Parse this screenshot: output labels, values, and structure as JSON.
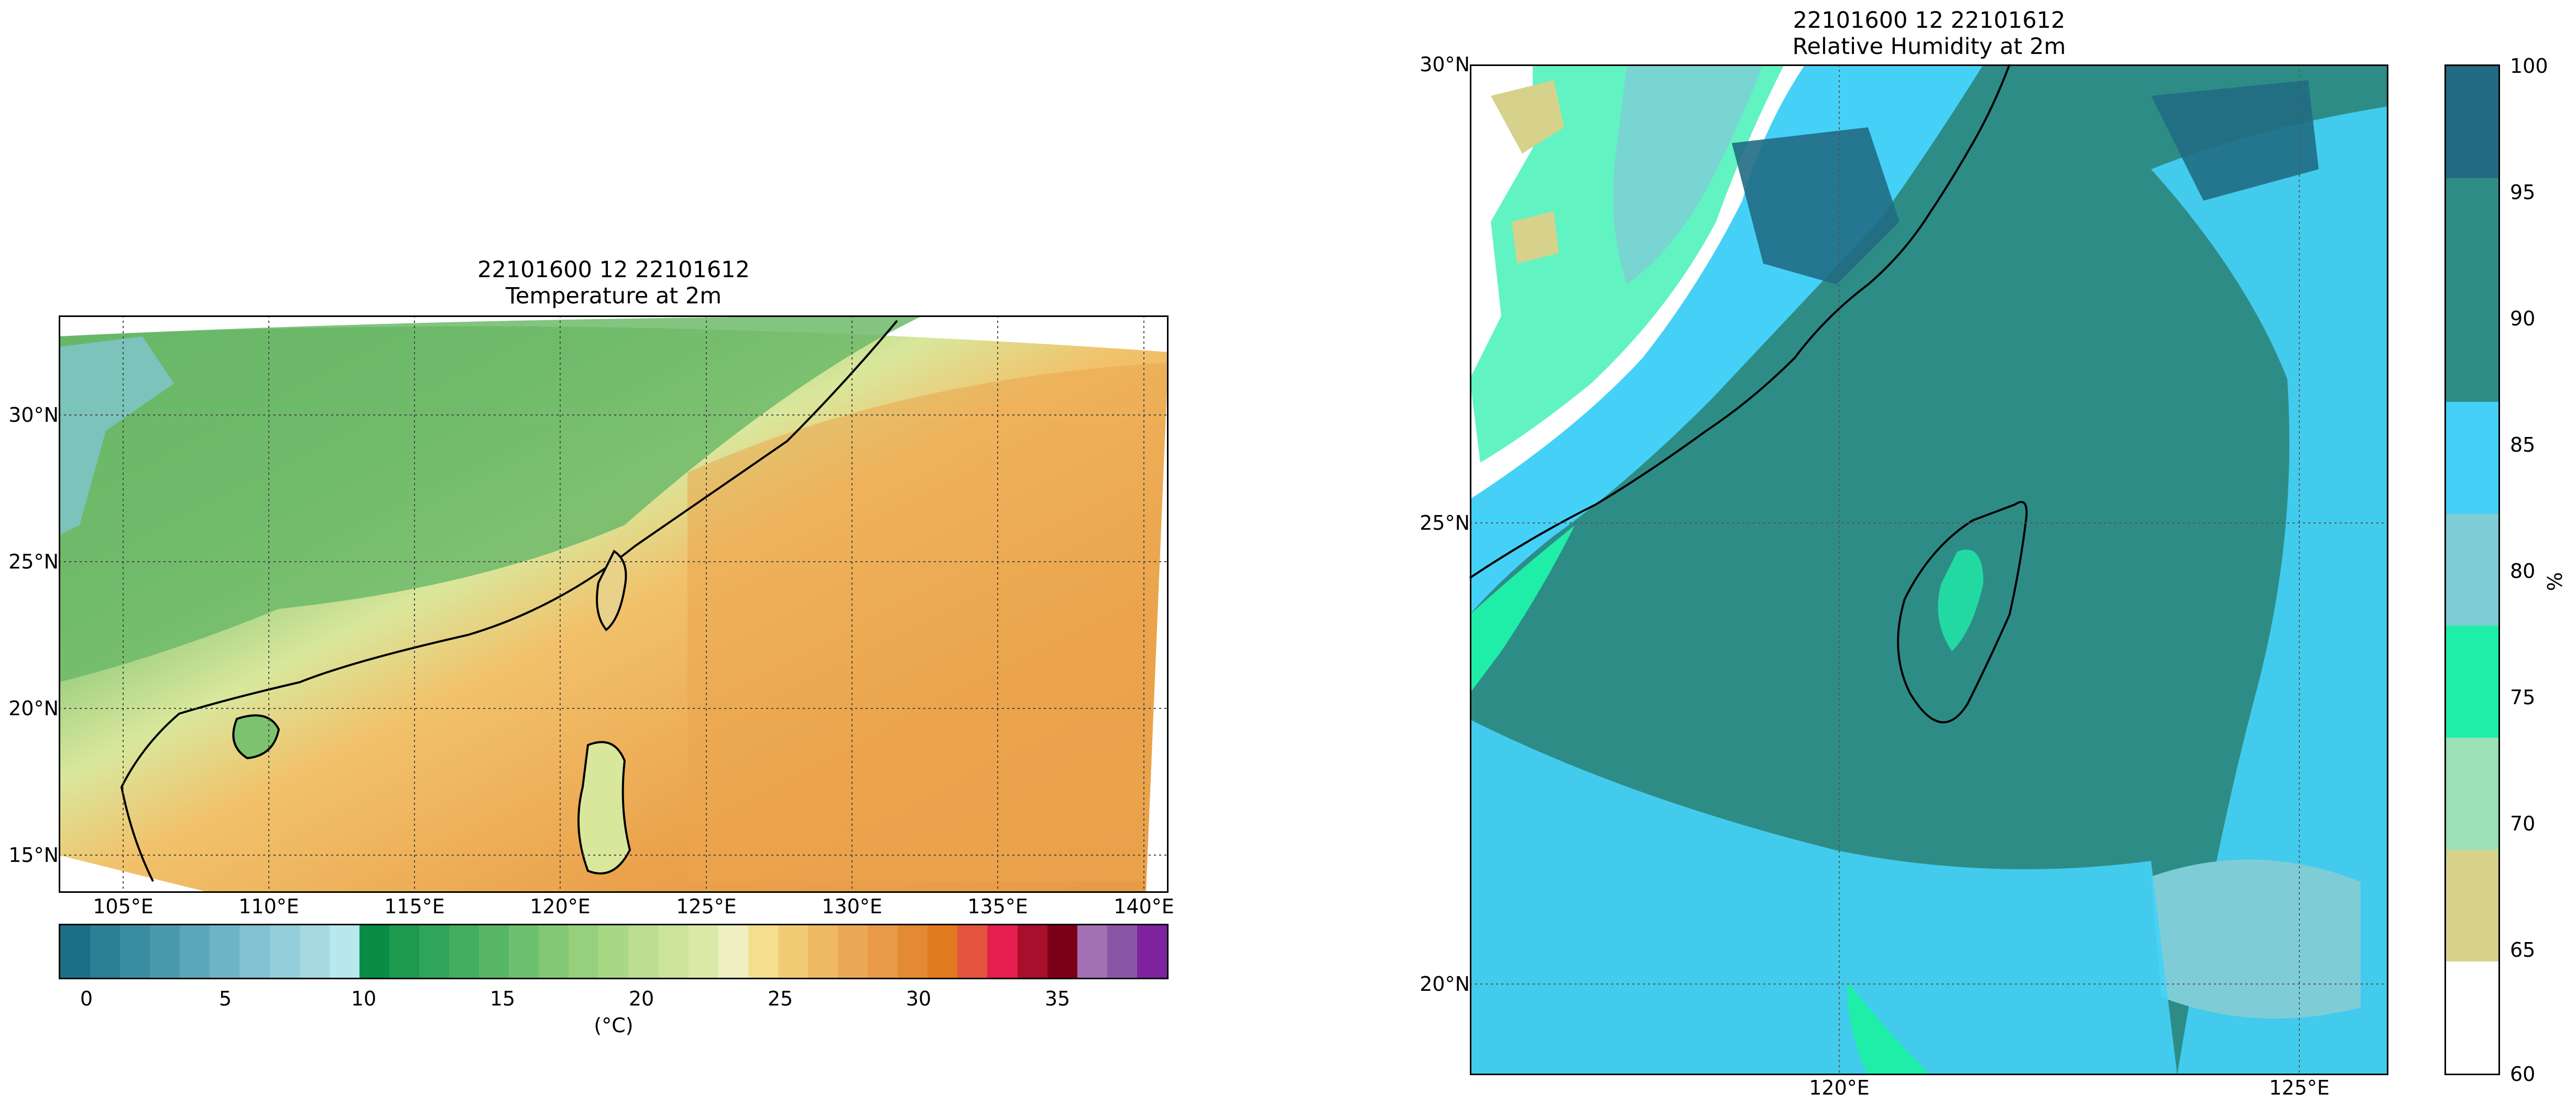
{
  "left_panel": {
    "title_line1": "22101600  12  22101612",
    "title_line2": "Temperature at 2m",
    "x_ticks": [
      "105°E",
      "110°E",
      "115°E",
      "120°E",
      "125°E",
      "130°E",
      "135°E",
      "140°E"
    ],
    "y_ticks": [
      "30°N",
      "25°N",
      "20°N",
      "15°N"
    ],
    "colorbar": {
      "ticks": [
        "0",
        "5",
        "10",
        "15",
        "20",
        "25",
        "30",
        "35"
      ],
      "label": "(°C)",
      "colors": [
        "#1d6f87",
        "#2c7f95",
        "#3a8da1",
        "#4a9aae",
        "#5ba7ba",
        "#6db5c6",
        "#80c2d1",
        "#93ceda",
        "#a5dae3",
        "#b7e8ee",
        "#0b8c44",
        "#1d9a4e",
        "#2ea558",
        "#43ae5f",
        "#58b766",
        "#6dc06d",
        "#83c874",
        "#97d07c",
        "#a9d885",
        "#bbde8f",
        "#cbe49a",
        "#dbe9a6",
        "#eef0c2",
        "#f4df8e",
        "#f2cc74",
        "#efba62",
        "#eca955",
        "#e89a46",
        "#e48a35",
        "#e07a1f",
        "#e4543f",
        "#e51e4f",
        "#a70f2c",
        "#7a0018",
        "#a271b3",
        "#8b55a6",
        "#7e22a0"
      ]
    }
  },
  "right_panel": {
    "title_line1": "22101600  12  22101612",
    "title_line2": "Relative Humidity at 2m",
    "x_ticks": [
      "120°E",
      "125°E"
    ],
    "y_ticks": [
      "30°N",
      "25°N",
      "20°N"
    ],
    "colorbar": {
      "ticks": [
        "100",
        "95",
        "90",
        "85",
        "80",
        "75",
        "70",
        "65",
        "60"
      ],
      "label": "%",
      "colors_top_to_bottom": [
        "#216b84",
        "#2e8c87",
        "#2e8c87",
        "#45d1f7",
        "#7ecdd6",
        "#1feea8",
        "#9be0b7",
        "#d6d28c",
        "#ffffff"
      ]
    }
  }
}
